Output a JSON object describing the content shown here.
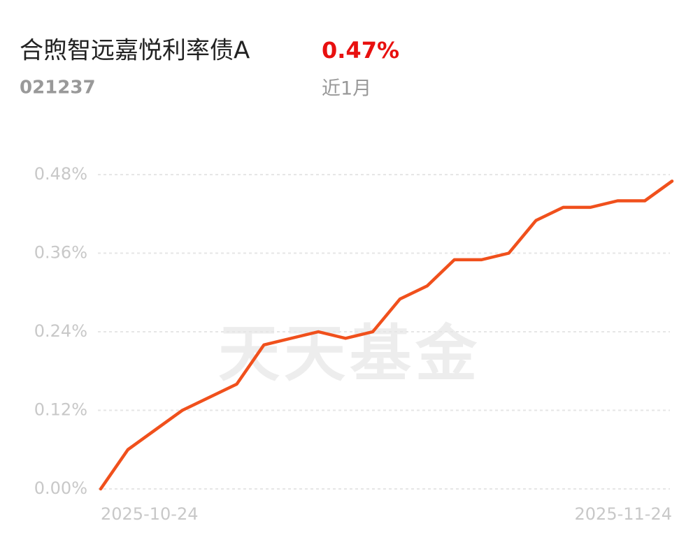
{
  "header": {
    "name": "合煦智远嘉悦利率债A",
    "return": "0.47%",
    "code": "021237",
    "period": "近1月"
  },
  "chart_data": {
    "type": "line",
    "watermark": "天天基金",
    "categories": [
      "2025-10-24",
      null,
      null,
      null,
      null,
      null,
      null,
      null,
      null,
      null,
      null,
      null,
      null,
      null,
      null,
      null,
      null,
      null,
      null,
      null,
      null,
      "2025-11-24"
    ],
    "values": [
      0,
      0.06,
      0.09,
      0.12,
      0.14,
      0.16,
      0.22,
      0.23,
      0.24,
      0.23,
      0.24,
      0.29,
      0.31,
      0.35,
      0.35,
      0.36,
      0.41,
      0.43,
      0.43,
      0.44,
      0.44,
      0.47
    ],
    "color": "#f0501c",
    "ylim": [
      0,
      0.48
    ],
    "yticks": [
      {
        "value": 0,
        "label": "0.00%"
      },
      {
        "value": 0.12,
        "label": "0.12%"
      },
      {
        "value": 0.24,
        "label": "0.24%"
      },
      {
        "value": 0.36,
        "label": "0.36%"
      },
      {
        "value": 0.48,
        "label": "0.48%"
      }
    ],
    "grid": true
  }
}
